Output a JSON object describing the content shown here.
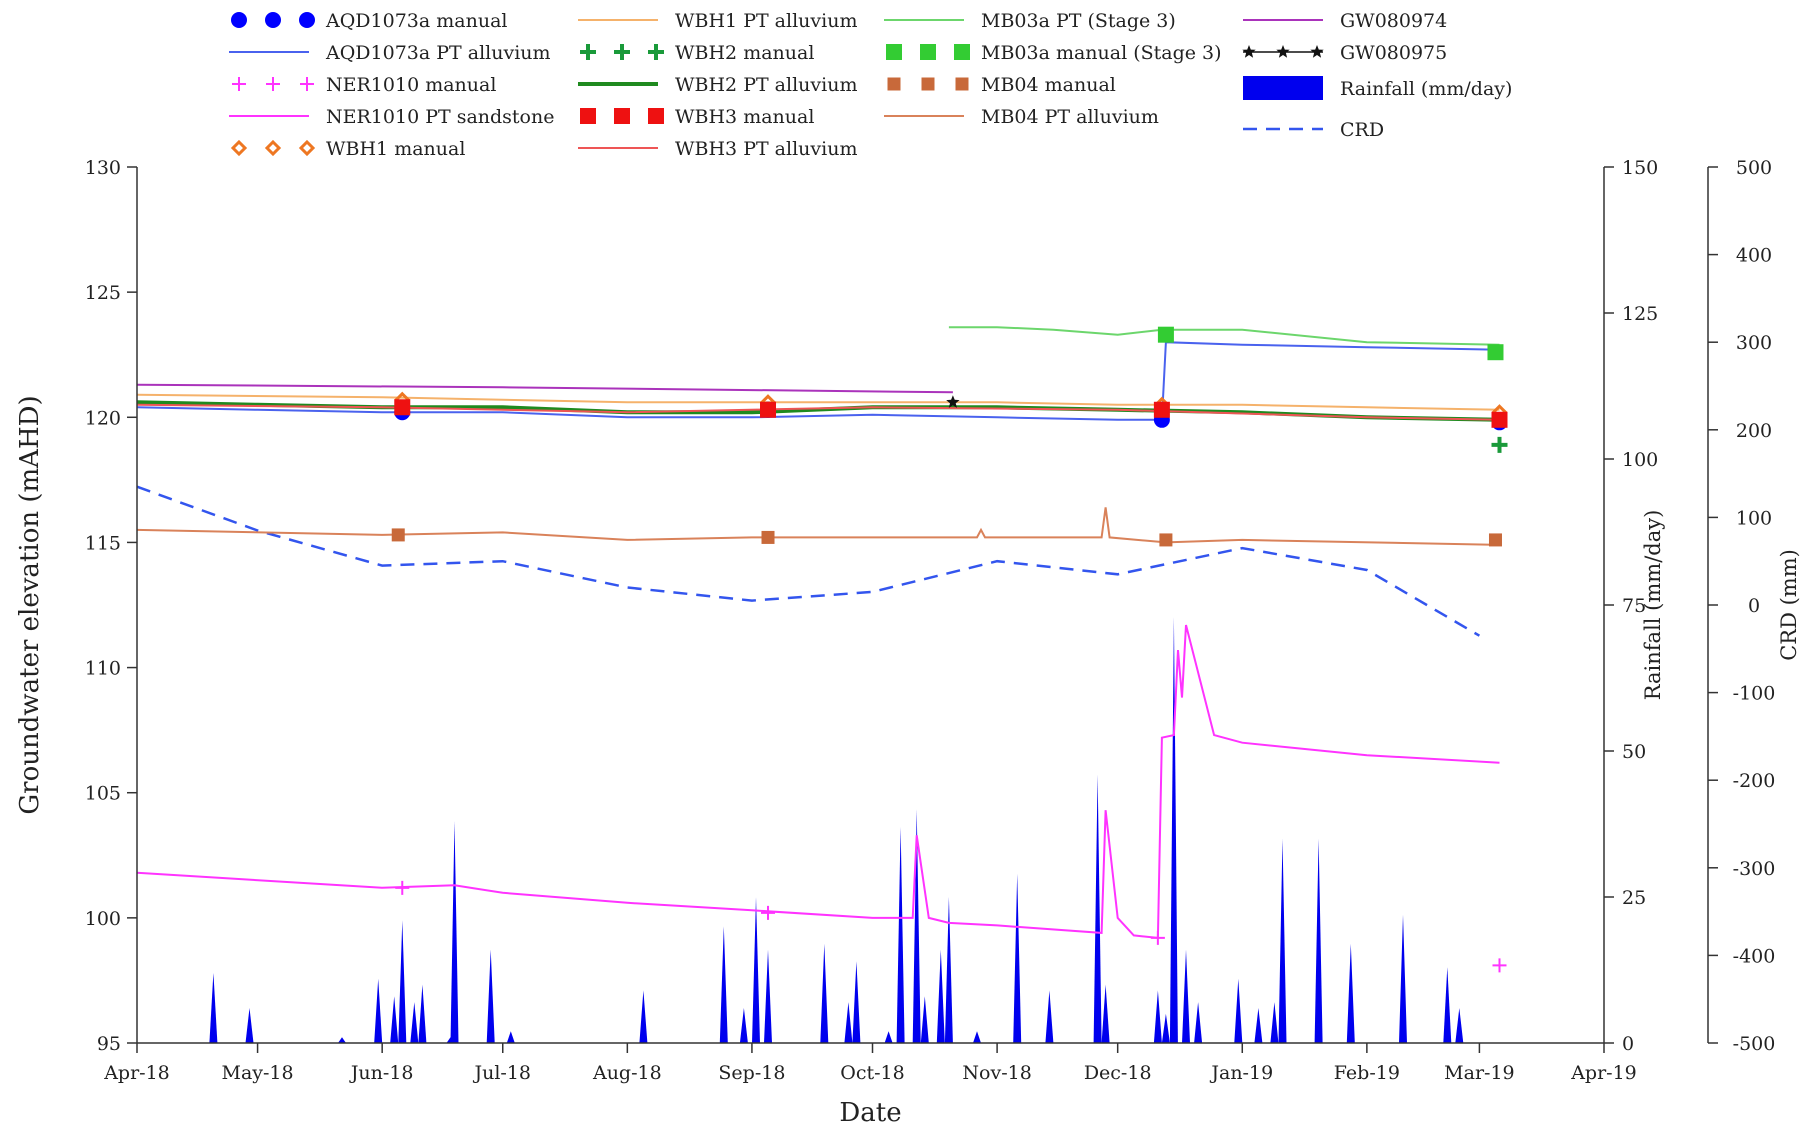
{
  "chart_data": {
    "type": "line",
    "xlabel": "Date",
    "ylabel": "Groundwater elevation (mAHD)",
    "y2label": "Rainfall (mm/day)",
    "y3label": "CRD (mm)",
    "xlim": [
      "2018-04-01",
      "2019-04-01"
    ],
    "ylim": [
      95,
      130
    ],
    "y2lim": [
      0,
      150
    ],
    "y3lim": [
      -500,
      500
    ],
    "grid": false,
    "legend_position": "top",
    "x_ticks": [
      {
        "date": "2018-04-01",
        "label": "Apr-18"
      },
      {
        "date": "2018-05-01",
        "label": "May-18"
      },
      {
        "date": "2018-06-01",
        "label": "Jun-18"
      },
      {
        "date": "2018-07-01",
        "label": "Jul-18"
      },
      {
        "date": "2018-08-01",
        "label": "Aug-18"
      },
      {
        "date": "2018-09-01",
        "label": "Sep-18"
      },
      {
        "date": "2018-10-01",
        "label": "Oct-18"
      },
      {
        "date": "2018-11-01",
        "label": "Nov-18"
      },
      {
        "date": "2018-12-01",
        "label": "Dec-18"
      },
      {
        "date": "2019-01-01",
        "label": "Jan-19"
      },
      {
        "date": "2019-02-01",
        "label": "Feb-19"
      },
      {
        "date": "2019-03-01",
        "label": "Mar-19"
      },
      {
        "date": "2019-04-01",
        "label": "Apr-19"
      }
    ],
    "y_ticks": [
      95,
      100,
      105,
      110,
      115,
      120,
      125,
      130
    ],
    "y2_ticks": [
      0,
      25,
      50,
      75,
      100,
      125,
      150
    ],
    "y3_ticks": [
      -500,
      -400,
      -300,
      -200,
      -100,
      0,
      100,
      200,
      300,
      400,
      500
    ],
    "series": [
      {
        "name": "AQD1073a manual",
        "style": "marker",
        "marker": "circle",
        "color": "#0000ff",
        "points": [
          [
            "2018-06-06",
            120.2
          ],
          [
            "2018-09-05",
            120.3
          ],
          [
            "2018-12-12",
            119.9
          ],
          [
            "2019-03-06",
            119.8
          ]
        ]
      },
      {
        "name": "AQD1073a PT alluvium",
        "style": "line",
        "color": "#4a62ee",
        "axis": "y",
        "points": [
          [
            "2018-04-01",
            120.4
          ],
          [
            "2018-05-01",
            120.3
          ],
          [
            "2018-06-01",
            120.2
          ],
          [
            "2018-07-01",
            120.2
          ],
          [
            "2018-08-01",
            120.0
          ],
          [
            "2018-09-01",
            120.0
          ],
          [
            "2018-10-01",
            120.1
          ],
          [
            "2018-11-01",
            120.0
          ],
          [
            "2018-12-01",
            119.9
          ],
          [
            "2018-12-12",
            119.9
          ],
          [
            "2018-12-13",
            123.0
          ],
          [
            "2019-01-01",
            122.9
          ],
          [
            "2019-02-01",
            122.8
          ],
          [
            "2019-03-06",
            122.7
          ]
        ]
      },
      {
        "name": "NER1010 manual",
        "style": "marker",
        "marker": "plus",
        "color": "#ff33ff",
        "points": [
          [
            "2018-06-06",
            101.2
          ],
          [
            "2018-09-05",
            100.2
          ],
          [
            "2018-12-11",
            99.2
          ],
          [
            "2019-03-06",
            98.1
          ]
        ]
      },
      {
        "name": "NER1010 PT sandstone",
        "style": "line",
        "color": "#ff33ff",
        "axis": "y",
        "points": [
          [
            "2018-04-01",
            101.8
          ],
          [
            "2018-06-01",
            101.2
          ],
          [
            "2018-06-19",
            101.3
          ],
          [
            "2018-07-01",
            101.0
          ],
          [
            "2018-08-01",
            100.6
          ],
          [
            "2018-09-01",
            100.3
          ],
          [
            "2018-10-01",
            100.0
          ],
          [
            "2018-10-11",
            100.0
          ],
          [
            "2018-10-12",
            103.3
          ],
          [
            "2018-10-15",
            100.0
          ],
          [
            "2018-10-20",
            99.8
          ],
          [
            "2018-11-01",
            99.7
          ],
          [
            "2018-11-27",
            99.4
          ],
          [
            "2018-11-28",
            104.3
          ],
          [
            "2018-12-01",
            100.0
          ],
          [
            "2018-12-05",
            99.3
          ],
          [
            "2018-12-11",
            99.2
          ],
          [
            "2018-12-12",
            107.2
          ],
          [
            "2018-12-15",
            107.3
          ],
          [
            "2018-12-16",
            110.7
          ],
          [
            "2018-12-17",
            108.8
          ],
          [
            "2018-12-18",
            111.7
          ],
          [
            "2018-12-25",
            107.3
          ],
          [
            "2019-01-01",
            107.0
          ],
          [
            "2019-02-01",
            106.5
          ],
          [
            "2019-03-06",
            106.2
          ]
        ]
      },
      {
        "name": "WBH1 manual",
        "style": "marker",
        "marker": "diamond-open",
        "color": "#ee7722",
        "points": [
          [
            "2018-06-06",
            120.7
          ],
          [
            "2018-09-05",
            120.6
          ],
          [
            "2018-12-12",
            120.5
          ],
          [
            "2019-03-06",
            120.2
          ]
        ]
      },
      {
        "name": "WBH1 PT alluvium",
        "style": "line",
        "color": "#f5b26b",
        "axis": "y",
        "points": [
          [
            "2018-04-01",
            120.9
          ],
          [
            "2018-06-01",
            120.8
          ],
          [
            "2018-07-01",
            120.7
          ],
          [
            "2018-08-01",
            120.6
          ],
          [
            "2018-09-01",
            120.6
          ],
          [
            "2018-10-01",
            120.6
          ],
          [
            "2018-11-01",
            120.6
          ],
          [
            "2018-12-01",
            120.5
          ],
          [
            "2019-01-01",
            120.5
          ],
          [
            "2019-02-01",
            120.4
          ],
          [
            "2019-03-06",
            120.3
          ]
        ]
      },
      {
        "name": "WBH2 manual",
        "style": "marker",
        "marker": "plus-bold",
        "color": "#1a9a3a",
        "points": [
          [
            "2019-03-06",
            118.9
          ]
        ]
      },
      {
        "name": "WBH2 PT alluvium",
        "style": "line",
        "color": "#1f8a1f",
        "width": 4,
        "axis": "y",
        "points": [
          [
            "2018-04-01",
            120.6
          ],
          [
            "2018-05-01",
            120.5
          ],
          [
            "2018-06-01",
            120.4
          ],
          [
            "2018-07-01",
            120.4
          ],
          [
            "2018-08-01",
            120.2
          ],
          [
            "2018-09-01",
            120.2
          ],
          [
            "2018-10-01",
            120.4
          ],
          [
            "2018-11-01",
            120.4
          ],
          [
            "2018-12-01",
            120.3
          ],
          [
            "2019-01-01",
            120.2
          ],
          [
            "2019-02-01",
            120.0
          ],
          [
            "2019-03-06",
            119.9
          ]
        ]
      },
      {
        "name": "WBH3 manual",
        "style": "marker",
        "marker": "square",
        "color": "#ee1111",
        "points": [
          [
            "2018-06-06",
            120.4
          ],
          [
            "2018-09-05",
            120.3
          ],
          [
            "2018-12-12",
            120.3
          ],
          [
            "2019-03-06",
            119.9
          ]
        ]
      },
      {
        "name": "WBH3 PT alluvium",
        "style": "line",
        "color": "#ee5555",
        "axis": "y",
        "points": [
          [
            "2018-04-01",
            120.5
          ],
          [
            "2018-06-01",
            120.4
          ],
          [
            "2018-08-01",
            120.2
          ],
          [
            "2018-10-01",
            120.4
          ],
          [
            "2018-12-01",
            120.3
          ],
          [
            "2019-02-01",
            120.0
          ],
          [
            "2019-03-06",
            119.9
          ]
        ]
      },
      {
        "name": "MB03a PT (Stage 3)",
        "style": "line",
        "color": "#6cd66c",
        "axis": "y",
        "points": [
          [
            "2018-10-20",
            123.6
          ],
          [
            "2018-11-01",
            123.6
          ],
          [
            "2018-11-15",
            123.5
          ],
          [
            "2018-12-01",
            123.3
          ],
          [
            "2018-12-12",
            123.5
          ],
          [
            "2019-01-01",
            123.5
          ],
          [
            "2019-02-01",
            123.0
          ],
          [
            "2019-03-06",
            122.9
          ]
        ]
      },
      {
        "name": "MB03a manual (Stage 3)",
        "style": "marker",
        "marker": "square",
        "color": "#33cc33",
        "points": [
          [
            "2018-12-13",
            123.3
          ],
          [
            "2019-03-05",
            122.6
          ]
        ]
      },
      {
        "name": "MB04 manual",
        "style": "marker",
        "marker": "square-small",
        "color": "#c8693a",
        "points": [
          [
            "2018-06-05",
            115.3
          ],
          [
            "2018-09-05",
            115.2
          ],
          [
            "2018-12-13",
            115.1
          ],
          [
            "2019-03-05",
            115.1
          ]
        ]
      },
      {
        "name": "MB04 PT alluvium",
        "style": "line",
        "color": "#d9825a",
        "axis": "y",
        "points": [
          [
            "2018-04-01",
            115.5
          ],
          [
            "2018-06-01",
            115.3
          ],
          [
            "2018-07-01",
            115.4
          ],
          [
            "2018-08-01",
            115.1
          ],
          [
            "2018-09-01",
            115.2
          ],
          [
            "2018-10-01",
            115.2
          ],
          [
            "2018-10-27",
            115.2
          ],
          [
            "2018-10-28",
            115.5
          ],
          [
            "2018-10-29",
            115.2
          ],
          [
            "2018-11-01",
            115.2
          ],
          [
            "2018-11-27",
            115.2
          ],
          [
            "2018-11-28",
            116.4
          ],
          [
            "2018-11-29",
            115.2
          ],
          [
            "2018-12-13",
            115.0
          ],
          [
            "2019-01-01",
            115.1
          ],
          [
            "2019-03-06",
            114.9
          ]
        ]
      },
      {
        "name": "GW080974",
        "style": "line",
        "color": "#aa33bb",
        "axis": "y",
        "points": [
          [
            "2018-04-01",
            121.3
          ],
          [
            "2018-07-01",
            121.2
          ],
          [
            "2018-10-21",
            121.0
          ]
        ]
      },
      {
        "name": "GW080975",
        "style": "line+marker",
        "marker": "star",
        "color": "#111111",
        "axis": "y",
        "points": [
          [
            "2018-10-21",
            120.6
          ]
        ]
      },
      {
        "name": "CRD",
        "style": "dashed",
        "color": "#3355ee",
        "axis": "y3",
        "points": [
          [
            "2018-04-01",
            135
          ],
          [
            "2018-05-01",
            85
          ],
          [
            "2018-06-01",
            45
          ],
          [
            "2018-07-01",
            50
          ],
          [
            "2018-08-01",
            20
          ],
          [
            "2018-09-01",
            5
          ],
          [
            "2018-10-01",
            15
          ],
          [
            "2018-11-01",
            50
          ],
          [
            "2018-12-01",
            35
          ],
          [
            "2019-01-01",
            65
          ],
          [
            "2019-02-01",
            40
          ],
          [
            "2019-03-01",
            -35
          ]
        ]
      },
      {
        "name": "Rainfall (mm/day)",
        "style": "area",
        "color": "#0000ee",
        "axis": "y2",
        "points": [
          [
            "2018-04-20",
            12
          ],
          [
            "2018-04-29",
            6
          ],
          [
            "2018-05-22",
            1
          ],
          [
            "2018-05-31",
            11
          ],
          [
            "2018-06-04",
            8
          ],
          [
            "2018-06-06",
            21
          ],
          [
            "2018-06-09",
            7
          ],
          [
            "2018-06-11",
            10
          ],
          [
            "2018-06-18",
            1
          ],
          [
            "2018-06-19",
            38
          ],
          [
            "2018-06-28",
            16
          ],
          [
            "2018-07-03",
            2
          ],
          [
            "2018-08-05",
            9
          ],
          [
            "2018-08-25",
            20
          ],
          [
            "2018-08-30",
            6
          ],
          [
            "2018-09-02",
            25
          ],
          [
            "2018-09-05",
            16
          ],
          [
            "2018-09-19",
            17
          ],
          [
            "2018-09-25",
            7
          ],
          [
            "2018-09-27",
            14
          ],
          [
            "2018-10-05",
            2
          ],
          [
            "2018-10-08",
            37
          ],
          [
            "2018-10-12",
            40
          ],
          [
            "2018-10-14",
            8
          ],
          [
            "2018-10-18",
            16
          ],
          [
            "2018-10-20",
            25
          ],
          [
            "2018-10-27",
            2
          ],
          [
            "2018-11-06",
            29
          ],
          [
            "2018-11-14",
            9
          ],
          [
            "2018-11-26",
            46
          ],
          [
            "2018-11-28",
            10
          ],
          [
            "2018-12-11",
            9
          ],
          [
            "2018-12-13",
            5
          ],
          [
            "2018-12-15",
            73
          ],
          [
            "2018-12-18",
            16
          ],
          [
            "2018-12-21",
            7
          ],
          [
            "2018-12-31",
            11
          ],
          [
            "2019-01-05",
            6
          ],
          [
            "2019-01-09",
            7
          ],
          [
            "2019-01-11",
            35
          ],
          [
            "2019-01-20",
            35
          ],
          [
            "2019-01-28",
            17
          ],
          [
            "2019-02-10",
            22
          ],
          [
            "2019-02-21",
            13
          ],
          [
            "2019-02-24",
            6
          ]
        ]
      }
    ]
  }
}
